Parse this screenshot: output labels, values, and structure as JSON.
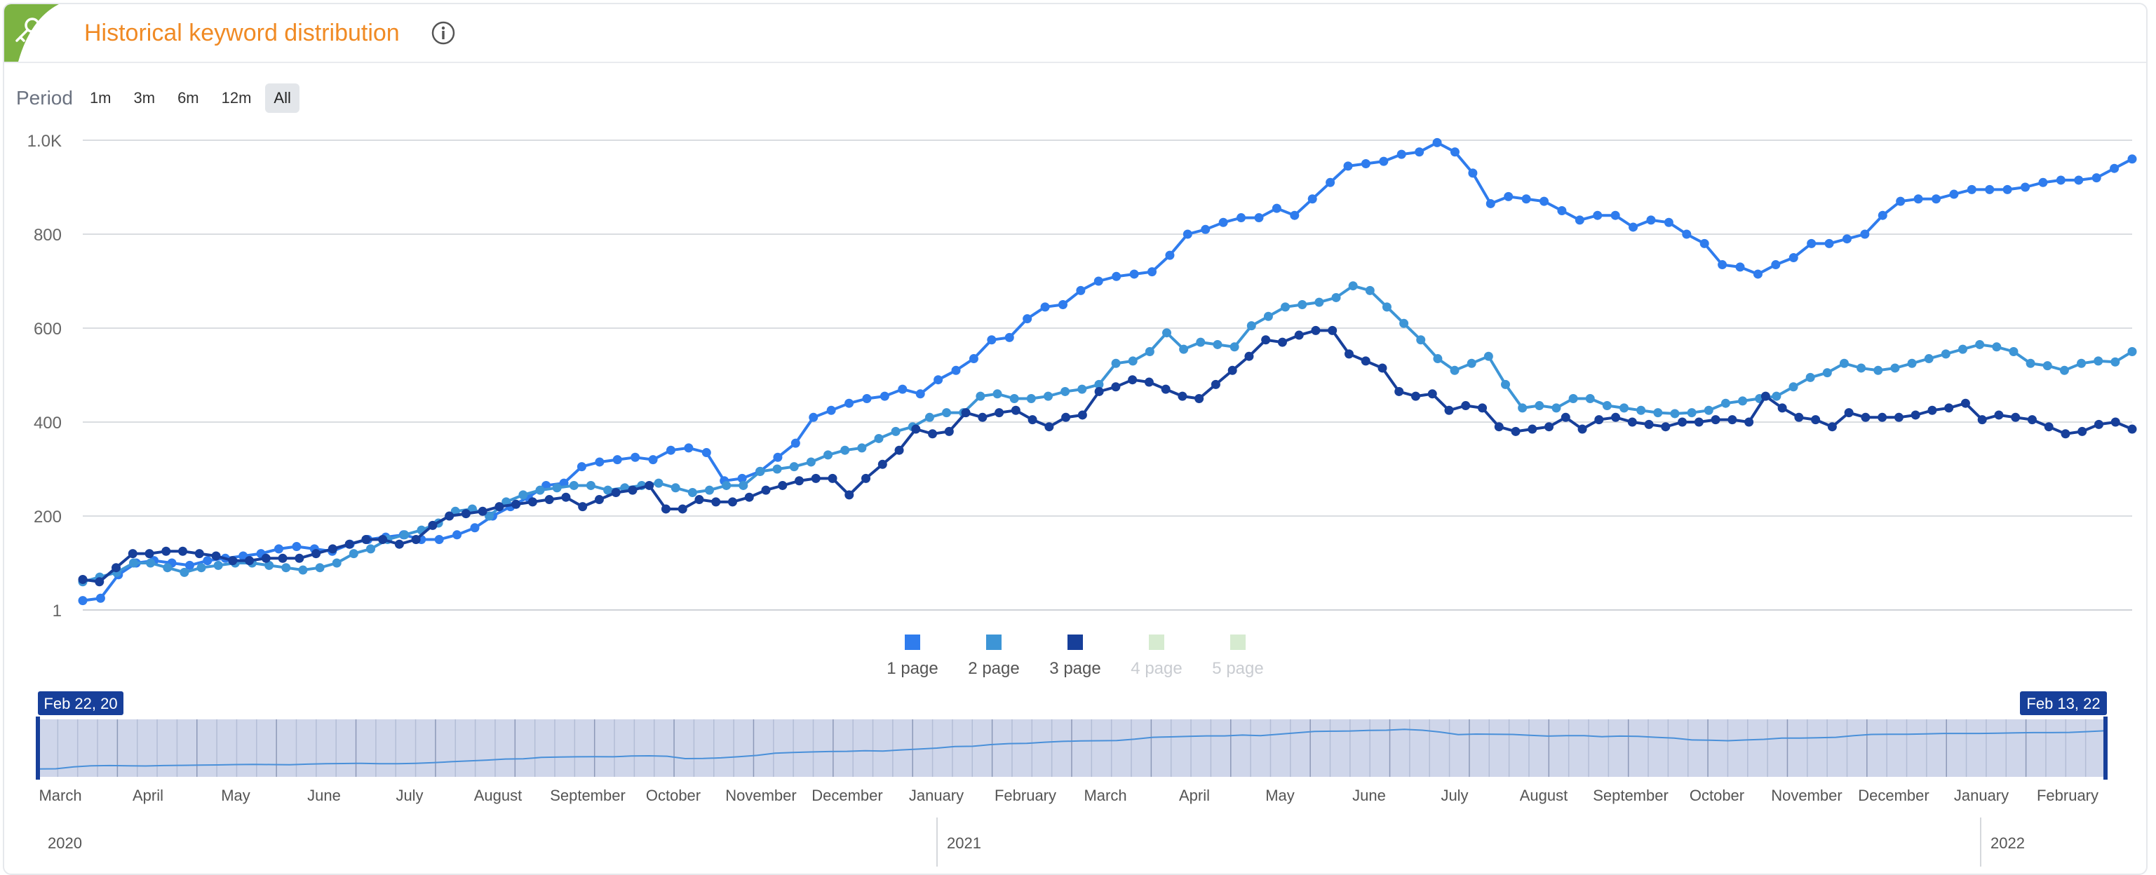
{
  "header": {
    "title": "Historical keyword distribution",
    "info_icon": "info-circle-icon",
    "corner_icon": "key-icon",
    "corner_color": "#7cb342"
  },
  "period": {
    "label": "Period",
    "options": [
      "1m",
      "3m",
      "6m",
      "12m",
      "All"
    ],
    "selected": "All"
  },
  "chart_data": {
    "type": "line",
    "y_ticks": [
      "1",
      "200",
      "400",
      "600",
      "800",
      "1.0K"
    ],
    "ylim": [
      0,
      1000
    ],
    "grid": true,
    "legend_position": "bottom-center",
    "legend": [
      {
        "name": "1 page",
        "color": "#2f7ced",
        "active": true
      },
      {
        "name": "2 page",
        "color": "#3d95d6",
        "active": true
      },
      {
        "name": "3 page",
        "color": "#173f9a",
        "active": true
      },
      {
        "name": "4 page",
        "color": "#d6ebd0",
        "active": false
      },
      {
        "name": "5 page",
        "color": "#d6ebd0",
        "active": false
      }
    ],
    "x_start": "2020-02-22",
    "x_end": "2022-02-13",
    "series": [
      {
        "name": "1 page",
        "color": "#2f7ced",
        "values": [
          20,
          25,
          75,
          100,
          105,
          100,
          95,
          105,
          110,
          115,
          120,
          130,
          135,
          130,
          125,
          140,
          150,
          155,
          160,
          150,
          150,
          160,
          175,
          200,
          220,
          240,
          265,
          270,
          305,
          315,
          320,
          325,
          320,
          340,
          345,
          335,
          275,
          280,
          295,
          325,
          355,
          410,
          425,
          440,
          450,
          455,
          470,
          460,
          490,
          510,
          535,
          575,
          580,
          620,
          645,
          650,
          680,
          700,
          710,
          715,
          720,
          755,
          800,
          810,
          825,
          835,
          835,
          855,
          840,
          875,
          910,
          945,
          950,
          955,
          970,
          975,
          995,
          975,
          930,
          865,
          880,
          875,
          870,
          850,
          830,
          840,
          840,
          815,
          830,
          825,
          800,
          780,
          735,
          730,
          715,
          735,
          750,
          780,
          780,
          790,
          800,
          840,
          870,
          875,
          875,
          885,
          895,
          895,
          895,
          900,
          910,
          915,
          915,
          920,
          940,
          960
        ]
      },
      {
        "name": "2 page",
        "color": "#3d95d6",
        "values": [
          60,
          70,
          80,
          100,
          100,
          90,
          80,
          90,
          95,
          100,
          100,
          95,
          90,
          85,
          90,
          100,
          120,
          130,
          150,
          160,
          170,
          185,
          210,
          215,
          200,
          230,
          245,
          255,
          260,
          265,
          265,
          255,
          260,
          265,
          270,
          260,
          250,
          255,
          265,
          265,
          295,
          300,
          305,
          315,
          330,
          340,
          345,
          365,
          380,
          390,
          410,
          420,
          420,
          455,
          460,
          450,
          450,
          455,
          465,
          470,
          480,
          525,
          530,
          550,
          590,
          555,
          570,
          565,
          560,
          605,
          625,
          645,
          650,
          655,
          665,
          690,
          680,
          645,
          610,
          575,
          535,
          510,
          525,
          540,
          480,
          430,
          435,
          430,
          450,
          450,
          435,
          430,
          425,
          420,
          418,
          420,
          425,
          440,
          445,
          450,
          455,
          475,
          495,
          505,
          525,
          515,
          510,
          515,
          525,
          535,
          545,
          555,
          565,
          560,
          550,
          525,
          520,
          510,
          525,
          530,
          528,
          550
        ]
      },
      {
        "name": "3 page",
        "color": "#173f9a",
        "values": [
          65,
          60,
          90,
          120,
          120,
          125,
          125,
          120,
          115,
          105,
          105,
          110,
          110,
          110,
          120,
          130,
          140,
          150,
          150,
          140,
          150,
          180,
          200,
          205,
          210,
          220,
          225,
          230,
          235,
          240,
          220,
          235,
          250,
          255,
          265,
          215,
          215,
          235,
          230,
          230,
          240,
          255,
          265,
          275,
          280,
          280,
          245,
          280,
          310,
          340,
          385,
          375,
          380,
          420,
          410,
          420,
          425,
          405,
          390,
          410,
          415,
          465,
          475,
          490,
          485,
          470,
          455,
          450,
          480,
          510,
          540,
          575,
          570,
          585,
          595,
          595,
          545,
          530,
          515,
          465,
          455,
          460,
          425,
          435,
          430,
          390,
          380,
          385,
          390,
          410,
          385,
          405,
          410,
          400,
          395,
          390,
          400,
          400,
          405,
          405,
          400,
          455,
          430,
          410,
          405,
          390,
          420,
          410,
          410,
          410,
          415,
          425,
          430,
          440,
          405,
          415,
          410,
          405,
          390,
          375,
          380,
          395,
          400,
          385
        ]
      }
    ],
    "navigator": {
      "start_label": "Feb 22, 20",
      "end_label": "Feb 13, 22",
      "months": [
        "March",
        "April",
        "May",
        "June",
        "July",
        "August",
        "September",
        "October",
        "November",
        "December",
        "January",
        "February",
        "March",
        "April",
        "May",
        "June",
        "July",
        "August",
        "September",
        "October",
        "November",
        "December",
        "January",
        "February"
      ],
      "years": [
        "2020",
        "2021",
        "2022"
      ]
    }
  }
}
